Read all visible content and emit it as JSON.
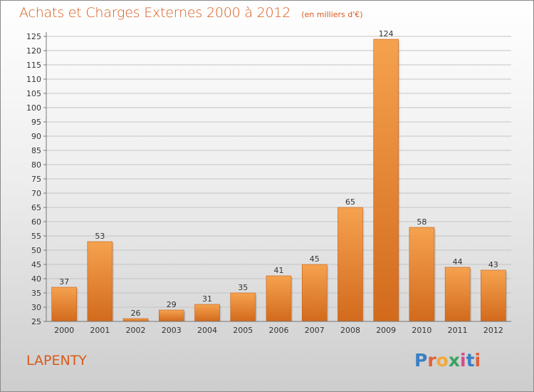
{
  "title": "Achats et Charges Externes 2000 à 2012",
  "unit_note": "(en milliers d'€)",
  "commune": "LAPENTY",
  "logo": {
    "text": "Proxiti",
    "letters": [
      "P",
      "r",
      "o",
      "x",
      "i",
      "t",
      "i"
    ],
    "colors": [
      "#3a7fc4",
      "#e0603a",
      "#f2a93b",
      "#3aa35e",
      "#d64a8c",
      "#3a7fc4",
      "#e0603a"
    ]
  },
  "colors": {
    "bar_top": "#f5a24f",
    "bar_bottom": "#d26a1c",
    "title": "#d85a1a",
    "grid": "#c4c4c4"
  },
  "chart_data": {
    "type": "bar",
    "categories": [
      "2000",
      "2001",
      "2002",
      "2003",
      "2004",
      "2005",
      "2006",
      "2007",
      "2008",
      "2009",
      "2010",
      "2011",
      "2012"
    ],
    "values": [
      37,
      53,
      26,
      29,
      31,
      35,
      41,
      45,
      65,
      124,
      58,
      44,
      43
    ],
    "title": "Achats et Charges Externes 2000 à 2012",
    "ylim": [
      25,
      125
    ],
    "yticks": [
      25,
      30,
      35,
      40,
      45,
      50,
      55,
      60,
      65,
      70,
      75,
      80,
      85,
      90,
      95,
      100,
      105,
      110,
      115,
      120,
      125
    ],
    "grid": true,
    "data_labels": true
  }
}
